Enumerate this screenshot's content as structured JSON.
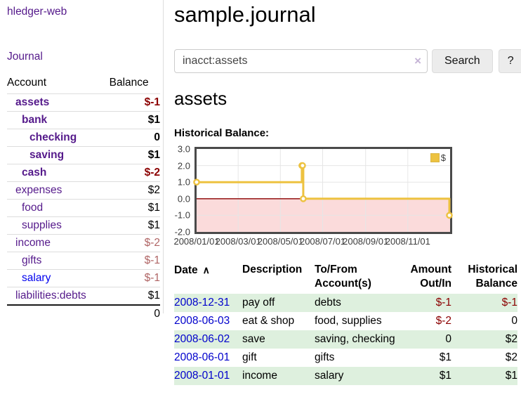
{
  "app": {
    "title": "hledger-web"
  },
  "sidebar": {
    "journal_label": "Journal",
    "accounts": {
      "header_account": "Account",
      "header_balance": "Balance",
      "rows": [
        {
          "account": "assets",
          "balance": "$-1"
        },
        {
          "account": "bank",
          "balance": "$1"
        },
        {
          "account": "checking",
          "balance": "0"
        },
        {
          "account": "saving",
          "balance": "$1"
        },
        {
          "account": "cash",
          "balance": "$-2"
        },
        {
          "account": "expenses",
          "balance": "$2"
        },
        {
          "account": "food",
          "balance": "$1"
        },
        {
          "account": "supplies",
          "balance": "$1"
        },
        {
          "account": "income",
          "balance": "$-2"
        },
        {
          "account": "gifts",
          "balance": "$-1"
        },
        {
          "account": "salary",
          "balance": "$-1"
        },
        {
          "account": "liabilities:debts",
          "balance": "$1"
        }
      ],
      "total": "0"
    }
  },
  "main": {
    "title": "sample.journal",
    "search": {
      "value": "inacct:assets",
      "placeholder": "",
      "clear_icon": "×",
      "button_label": "Search",
      "help_label": "?"
    },
    "account_heading": "assets"
  },
  "chart_data": {
    "type": "line",
    "step": true,
    "title": "Historical Balance:",
    "legend": [
      {
        "label": "$",
        "color": "#edc240"
      }
    ],
    "legend_position": "top-right",
    "grid": true,
    "x_range": [
      "2008/01/01",
      "2009/01/01"
    ],
    "ylim": [
      -2.0,
      3.0
    ],
    "yticks": [
      3.0,
      2.0,
      1.0,
      0.0,
      -1.0,
      -2.0
    ],
    "xtick_labels": [
      "2008/01/01",
      "2008/03/01",
      "2008/05/01",
      "2008/07/01",
      "2008/09/01",
      "2008/11/01"
    ],
    "series": [
      {
        "name": "$",
        "points": [
          {
            "date": "2008/01/01",
            "value": 1
          },
          {
            "date": "2008/06/01",
            "value": 2
          },
          {
            "date": "2008/06/02",
            "value": 2
          },
          {
            "date": "2008/06/03",
            "value": 0
          },
          {
            "date": "2008/12/31",
            "value": -1
          }
        ]
      }
    ],
    "line_color": "#edc240",
    "marker_fill": "#ffffff",
    "negative_region_fill": "#fbdbdb",
    "zero_line_color": "#8b0000",
    "grid_color": "#e6e6e6",
    "border_color": "#4a4a4a"
  },
  "register": {
    "sort_icon": "∧",
    "headers": {
      "date": "Date",
      "description": "Description",
      "accounts": "To/From Account(s)",
      "amount": "Amount Out/In",
      "balance": "Historical Balance"
    },
    "rows": [
      {
        "date": "2008-12-31",
        "description": "pay off",
        "accounts": "debts",
        "amount": "$-1",
        "balance": "$-1"
      },
      {
        "date": "2008-06-03",
        "description": "eat & shop",
        "accounts": "food, supplies",
        "amount": "$-2",
        "balance": "0"
      },
      {
        "date": "2008-06-02",
        "description": "save",
        "accounts": "saving, checking",
        "amount": "0",
        "balance": "$2"
      },
      {
        "date": "2008-06-01",
        "description": "gift",
        "accounts": "gifts",
        "amount": "$1",
        "balance": "$2"
      },
      {
        "date": "2008-01-01",
        "description": "income",
        "accounts": "salary",
        "amount": "$1",
        "balance": "$1"
      }
    ]
  },
  "colors": {
    "purple_link": "#551a8b",
    "blue_link": "#0000ee",
    "date_link": "#0000cc",
    "negative_strong": "#8b0000",
    "negative_muted": "#b06565",
    "row_stripe_green": "#def0de",
    "chart_line": "#edc240",
    "chart_negative_fill": "#fbdbdb",
    "chart_zero_line": "#8b0000",
    "button_bg": "#ececec"
  }
}
